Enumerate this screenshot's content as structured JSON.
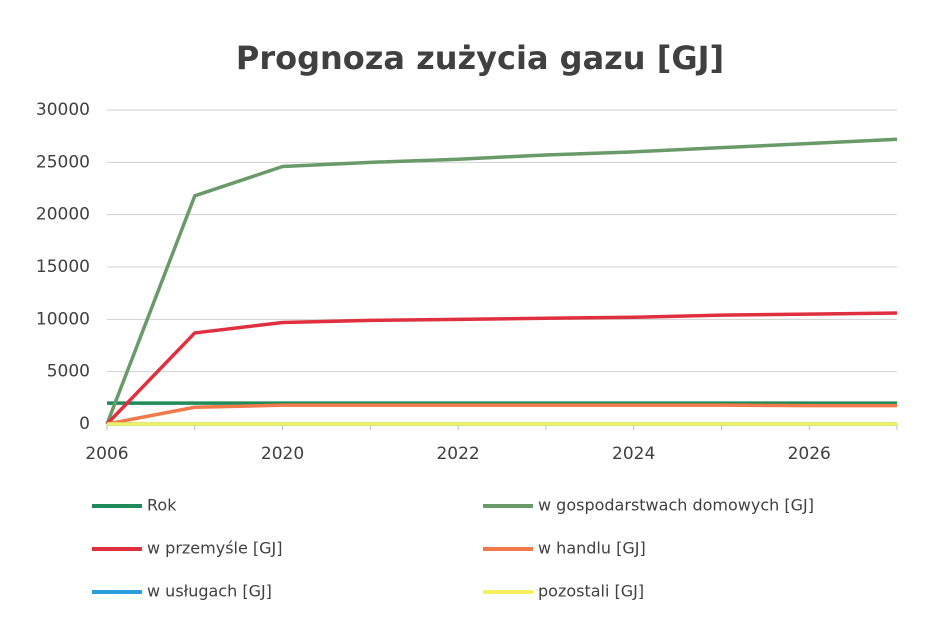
{
  "chart_data": {
    "type": "line",
    "title": "Prognoza zużycia gazu [GJ]",
    "categories": [
      "2006",
      null,
      "2020",
      null,
      "2022",
      null,
      "2024",
      null,
      "2026",
      null
    ],
    "series": [
      {
        "name": "Rok",
        "color": "#1f8a5a",
        "values": [
          2000,
          2000,
          2000,
          2000,
          2000,
          2000,
          2000,
          2000,
          2000,
          2000
        ]
      },
      {
        "name": "w gospodarstwach domowych [GJ]",
        "color": "#6a9a6a",
        "values": [
          0,
          21800,
          24600,
          25000,
          25300,
          25700,
          26000,
          26400,
          26800,
          27200
        ]
      },
      {
        "name": "w przemyśle [GJ]",
        "color": "#e0303f",
        "values": [
          0,
          8700,
          9700,
          9900,
          10000,
          10100,
          10200,
          10400,
          10500,
          10600
        ]
      },
      {
        "name": "w handlu [GJ]",
        "color": "#f07a4a",
        "values": [
          0,
          1600,
          1800,
          1800,
          1800,
          1800,
          1800,
          1800,
          1750,
          1750
        ]
      },
      {
        "name": "w usługach [GJ]",
        "color": "#2a9fe0",
        "values": [
          0,
          0,
          0,
          0,
          0,
          0,
          0,
          0,
          0,
          0
        ]
      },
      {
        "name": "pozostali [GJ]",
        "color": "#f2f060",
        "values": [
          0,
          0,
          0,
          0,
          0,
          0,
          0,
          0,
          0,
          0
        ]
      }
    ],
    "ylim": [
      0,
      30000
    ],
    "yticks": [
      0,
      5000,
      10000,
      15000,
      20000,
      25000,
      30000
    ],
    "grid": true
  }
}
